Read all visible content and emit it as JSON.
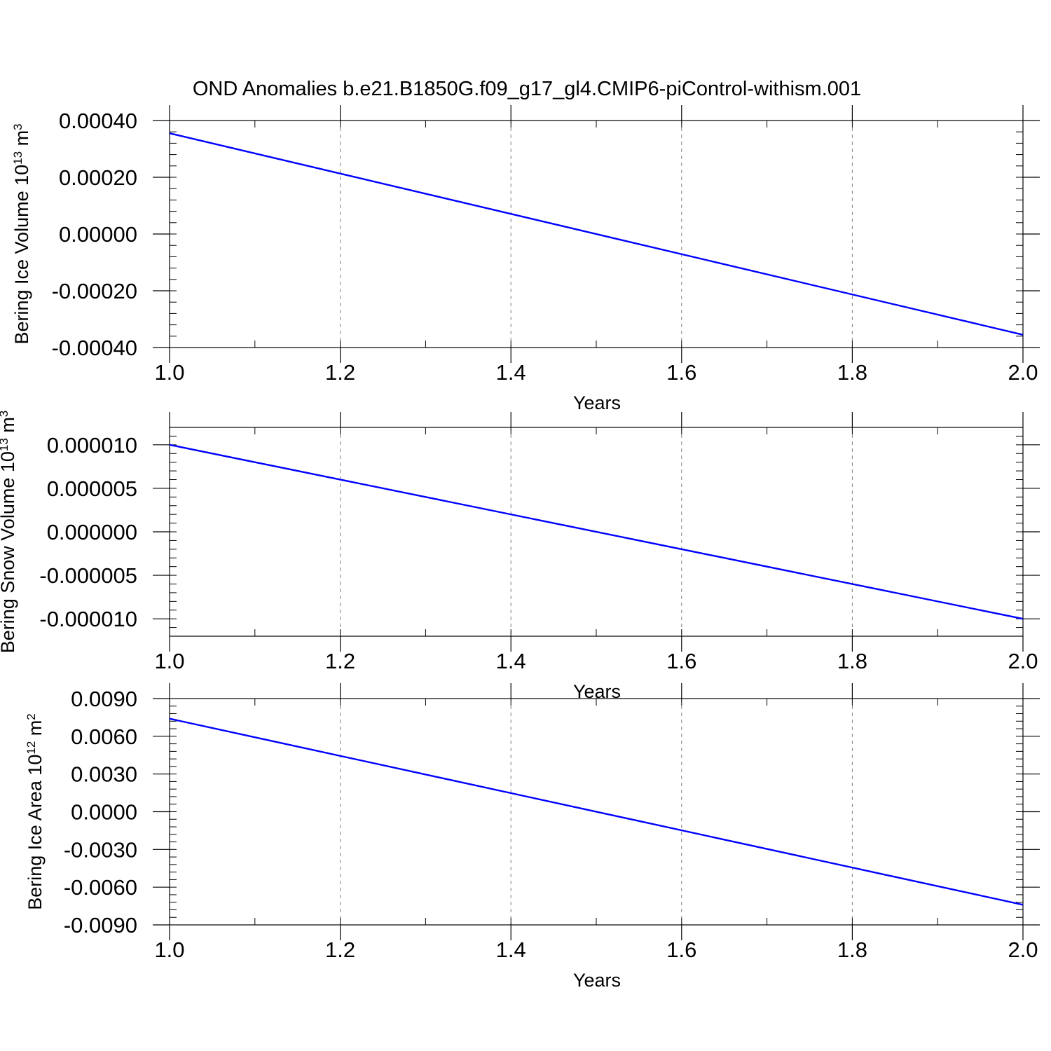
{
  "title": "OND Anomalies b.e21.B1850G.f09_g17_gl4.CMIP6-piControl-withism.001",
  "colors": {
    "line": "#0000ff",
    "axis": "#000000",
    "grid": "#808080",
    "background": "#ffffff"
  },
  "chart_data": [
    {
      "type": "line",
      "xlabel": "Years",
      "ylabel": {
        "text": "Bering Ice Volume 10",
        "exponent": "13",
        "unit": " m",
        "unit_exponent": "3"
      },
      "xlim": [
        1.0,
        2.0
      ],
      "ylim": [
        -0.0004,
        0.0004
      ],
      "xticks": [
        1.0,
        1.2,
        1.4,
        1.6,
        1.8,
        2.0
      ],
      "xtick_labels": [
        "1.0",
        "1.2",
        "1.4",
        "1.6",
        "1.8",
        "2.0"
      ],
      "yticks": [
        0.0004,
        0.0002,
        0.0,
        -0.0002,
        -0.0004
      ],
      "ytick_labels": [
        "0.00040",
        "0.00020",
        "0.00000",
        "-0.00020",
        "-0.00040"
      ],
      "grid": "vertical dashed",
      "series": [
        {
          "x": [
            1.0,
            2.0
          ],
          "y": [
            0.000355,
            -0.000355
          ]
        }
      ]
    },
    {
      "type": "line",
      "xlabel": "Years",
      "ylabel": {
        "text": "Bering Snow Volume 10",
        "exponent": "13",
        "unit": " m",
        "unit_exponent": "3"
      },
      "xlim": [
        1.0,
        2.0
      ],
      "ylim": [
        -1.2e-05,
        1.2e-05
      ],
      "xticks": [
        1.0,
        1.2,
        1.4,
        1.6,
        1.8,
        2.0
      ],
      "xtick_labels": [
        "1.0",
        "1.2",
        "1.4",
        "1.6",
        "1.8",
        "2.0"
      ],
      "yticks": [
        1e-05,
        5e-06,
        0.0,
        -5e-06,
        -1e-05
      ],
      "ytick_labels": [
        "0.000010",
        "0.000005",
        "0.000000",
        "-0.000005",
        "-0.000010"
      ],
      "grid": "vertical dashed",
      "series": [
        {
          "x": [
            1.0,
            2.0
          ],
          "y": [
            1e-05,
            -1e-05
          ]
        }
      ]
    },
    {
      "type": "line",
      "xlabel": "Years",
      "ylabel": {
        "text": "Bering Ice Area 10",
        "exponent": "12",
        "unit": " m",
        "unit_exponent": "2"
      },
      "xlim": [
        1.0,
        2.0
      ],
      "ylim": [
        -0.009,
        0.009
      ],
      "xticks": [
        1.0,
        1.2,
        1.4,
        1.6,
        1.8,
        2.0
      ],
      "xtick_labels": [
        "1.0",
        "1.2",
        "1.4",
        "1.6",
        "1.8",
        "2.0"
      ],
      "yticks": [
        0.009,
        0.006,
        0.003,
        0.0,
        -0.003,
        -0.006,
        -0.009
      ],
      "ytick_labels": [
        "0.0090",
        "0.0060",
        "0.0030",
        "0.0000",
        "-0.0030",
        "-0.0060",
        "-0.0090"
      ],
      "grid": "vertical dashed",
      "series": [
        {
          "x": [
            1.0,
            2.0
          ],
          "y": [
            0.0074,
            -0.0074
          ]
        }
      ]
    }
  ]
}
